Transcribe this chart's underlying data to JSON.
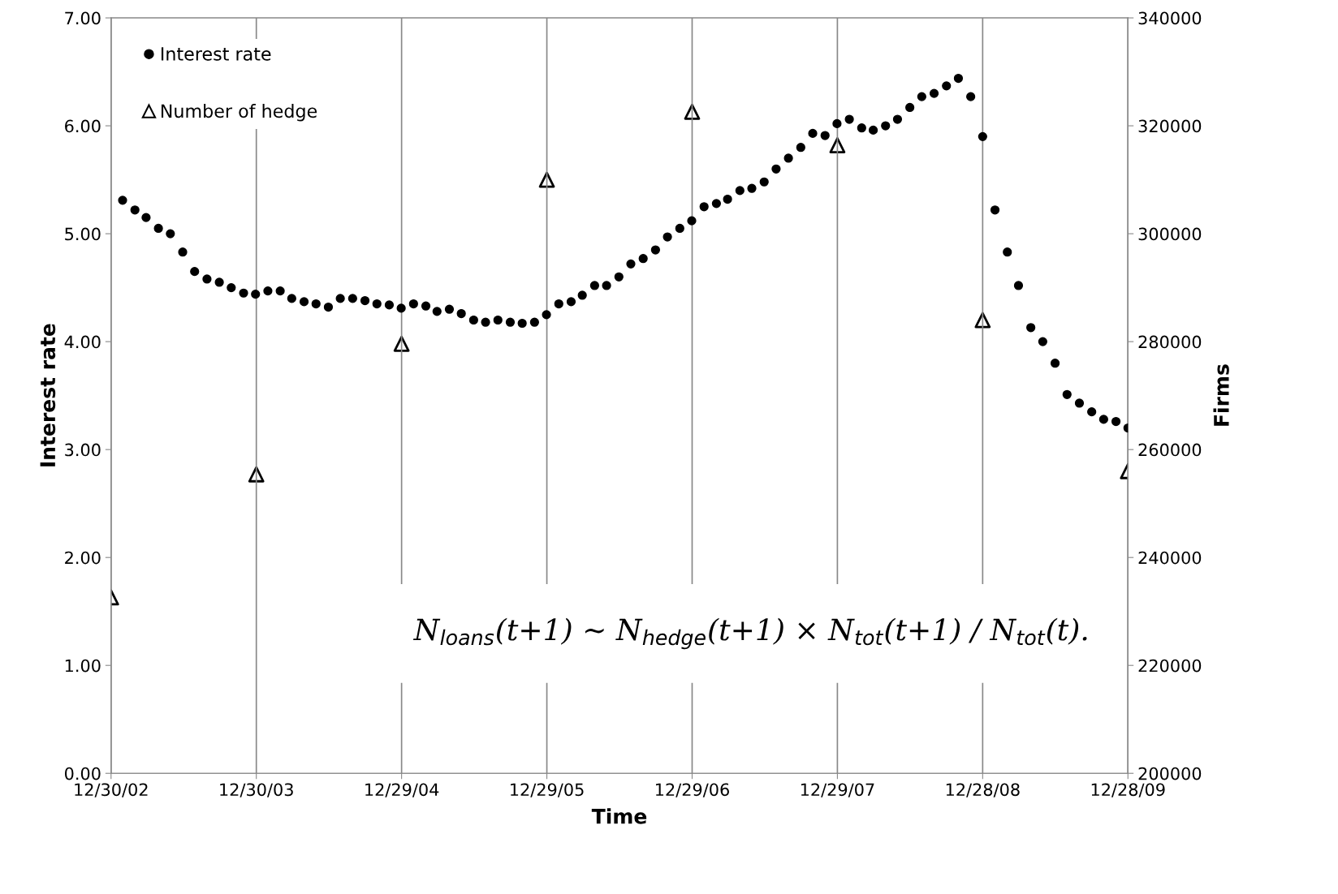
{
  "chart_data": {
    "type": "scatter",
    "xlabel": "Time",
    "ylabel": "Interest rate",
    "y2label": "Firms",
    "xlim": [
      "2002-12-30",
      "2009-12-28"
    ],
    "xticks": [
      {
        "value": "2002-12-30",
        "label": "12/30/02"
      },
      {
        "value": "2003-12-30",
        "label": "12/30/03"
      },
      {
        "value": "2004-12-29",
        "label": "12/29/04"
      },
      {
        "value": "2005-12-29",
        "label": "12/29/05"
      },
      {
        "value": "2006-12-29",
        "label": "12/29/06"
      },
      {
        "value": "2007-12-29",
        "label": "12/29/07"
      },
      {
        "value": "2008-12-28",
        "label": "12/28/08"
      },
      {
        "value": "2009-12-28",
        "label": "12/28/09"
      }
    ],
    "ylim": [
      0,
      7
    ],
    "yticks": [
      {
        "value": 0,
        "label": "0.00"
      },
      {
        "value": 1,
        "label": "1.00"
      },
      {
        "value": 2,
        "label": "2.00"
      },
      {
        "value": 3,
        "label": "3.00"
      },
      {
        "value": 4,
        "label": "4.00"
      },
      {
        "value": 5,
        "label": "5.00"
      },
      {
        "value": 6,
        "label": "6.00"
      },
      {
        "value": 7,
        "label": "7.00"
      }
    ],
    "y2lim": [
      200000,
      340000
    ],
    "y2ticks": [
      200000,
      220000,
      240000,
      260000,
      280000,
      300000,
      320000,
      340000
    ],
    "grid": "x",
    "legend": "top left",
    "series": [
      {
        "name": "Interest rate",
        "color": "#000000",
        "marker": "circle",
        "x": [
          "2003-01-28",
          "2003-02-28",
          "2003-03-28",
          "2003-04-28",
          "2003-05-28",
          "2003-06-28",
          "2003-07-28",
          "2003-08-28",
          "2003-09-28",
          "2003-10-28",
          "2003-11-28",
          "2003-12-28",
          "2004-01-28",
          "2004-02-28",
          "2004-03-28",
          "2004-04-28",
          "2004-05-28",
          "2004-06-28",
          "2004-07-28",
          "2004-08-28",
          "2004-09-28",
          "2004-10-28",
          "2004-11-28",
          "2004-12-28",
          "2005-01-28",
          "2005-02-28",
          "2005-03-28",
          "2005-04-28",
          "2005-05-28",
          "2005-06-28",
          "2005-07-28",
          "2005-08-28",
          "2005-09-28",
          "2005-10-28",
          "2005-11-28",
          "2005-12-28",
          "2006-01-28",
          "2006-02-28",
          "2006-03-28",
          "2006-04-28",
          "2006-05-28",
          "2006-06-28",
          "2006-07-28",
          "2006-08-28",
          "2006-09-28",
          "2006-10-28",
          "2006-11-28",
          "2006-12-28",
          "2007-01-28",
          "2007-02-28",
          "2007-03-28",
          "2007-04-28",
          "2007-05-28",
          "2007-06-28",
          "2007-07-28",
          "2007-08-28",
          "2007-09-28",
          "2007-10-28",
          "2007-11-28",
          "2007-12-28",
          "2008-01-28",
          "2008-02-28",
          "2008-03-28",
          "2008-04-28",
          "2008-05-28",
          "2008-06-28",
          "2008-07-28",
          "2008-08-28",
          "2008-09-28",
          "2008-10-28",
          "2008-11-28",
          "2008-12-28",
          "2009-01-28",
          "2009-02-28",
          "2009-03-28",
          "2009-04-28",
          "2009-05-28",
          "2009-06-28",
          "2009-07-28",
          "2009-08-28",
          "2009-09-28",
          "2009-10-28",
          "2009-11-28",
          "2009-12-28"
        ],
        "values": [
          5.31,
          5.22,
          5.15,
          5.05,
          5.0,
          4.83,
          4.65,
          4.58,
          4.55,
          4.5,
          4.45,
          4.44,
          4.47,
          4.47,
          4.4,
          4.37,
          4.35,
          4.32,
          4.4,
          4.4,
          4.38,
          4.35,
          4.34,
          4.31,
          4.35,
          4.33,
          4.28,
          4.3,
          4.26,
          4.2,
          4.18,
          4.2,
          4.18,
          4.17,
          4.18,
          4.25,
          4.35,
          4.37,
          4.43,
          4.52,
          4.52,
          4.6,
          4.72,
          4.77,
          4.85,
          4.97,
          5.05,
          5.12,
          5.25,
          5.28,
          5.32,
          5.4,
          5.42,
          5.48,
          5.6,
          5.7,
          5.8,
          5.93,
          5.91,
          6.02,
          6.06,
          5.98,
          5.96,
          6.0,
          6.06,
          6.17,
          6.27,
          6.3,
          6.37,
          6.44,
          6.27,
          5.9,
          5.22,
          4.83,
          4.52,
          4.13,
          4.0,
          3.8,
          3.51,
          3.43,
          3.35,
          3.28,
          3.26,
          3.2
        ]
      },
      {
        "name": "Number of hedge",
        "color": "#000000",
        "marker": "triangle",
        "axis": "y2",
        "x": [
          "2002-12-30",
          "2003-12-30",
          "2004-12-29",
          "2005-12-29",
          "2006-12-29",
          "2007-12-29",
          "2008-12-28",
          "2009-12-28"
        ],
        "values": [
          232600,
          255400,
          279600,
          310000,
          322600,
          316400,
          284000,
          256000
        ]
      }
    ],
    "annotations": [
      {
        "text": "N$_{loans}$(t+1) ~ N$_{hedge}$(t+1) × N$_{tot}$(t+1) / N$_{tot}$(t)."
      }
    ]
  }
}
